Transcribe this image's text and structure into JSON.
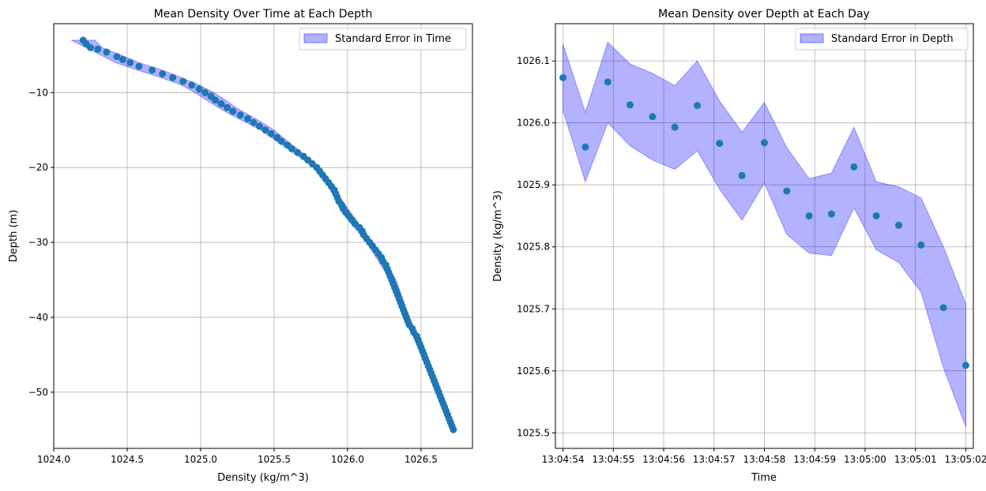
{
  "chart_data": [
    {
      "type": "scatter",
      "title": "Mean Density Over Time at Each Depth",
      "xlabel": "Density (kg/m^3)",
      "ylabel": "Depth (m)",
      "xlim": [
        1024.0,
        1026.85
      ],
      "ylim": [
        -57.5,
        -0.8
      ],
      "xticks": [
        "1024.0",
        "1024.5",
        "1025.0",
        "1025.5",
        "1026.0",
        "1026.5"
      ],
      "xtick_values": [
        1024.0,
        1024.5,
        1025.0,
        1025.5,
        1026.0,
        1026.5
      ],
      "yticks": [
        "−10",
        "−20",
        "−30",
        "−40",
        "−50"
      ],
      "ytick_values": [
        -10,
        -20,
        -30,
        -40,
        -50
      ],
      "grid": true,
      "legend_position": "top-right",
      "legend": [
        "Standard Error in Time"
      ],
      "fill_legend": "Standard Error in Time",
      "point_color": "#1f77b4",
      "fill_color": "#0000ff",
      "points": [
        [
          1024.2,
          -3
        ],
        [
          1024.22,
          -3.5
        ],
        [
          1024.25,
          -4
        ],
        [
          1024.3,
          -4.2
        ],
        [
          1024.36,
          -4.6
        ],
        [
          1024.43,
          -5.2
        ],
        [
          1024.47,
          -5.6
        ],
        [
          1024.52,
          -6
        ],
        [
          1024.58,
          -6.5
        ],
        [
          1024.67,
          -7
        ],
        [
          1024.74,
          -7.5
        ],
        [
          1024.81,
          -8
        ],
        [
          1024.88,
          -8.5
        ],
        [
          1024.94,
          -9
        ],
        [
          1024.99,
          -9.5
        ],
        [
          1025.03,
          -10
        ],
        [
          1025.07,
          -10.5
        ],
        [
          1025.1,
          -11
        ],
        [
          1025.14,
          -11.5
        ],
        [
          1025.18,
          -12
        ],
        [
          1025.22,
          -12.5
        ],
        [
          1025.27,
          -13
        ],
        [
          1025.32,
          -13.5
        ],
        [
          1025.36,
          -14
        ],
        [
          1025.4,
          -14.5
        ],
        [
          1025.44,
          -15
        ],
        [
          1025.48,
          -15.5
        ],
        [
          1025.52,
          -16
        ],
        [
          1025.55,
          -16.5
        ],
        [
          1025.59,
          -17
        ],
        [
          1025.62,
          -17.5
        ],
        [
          1025.66,
          -18
        ],
        [
          1025.7,
          -18.5
        ],
        [
          1025.73,
          -19
        ],
        [
          1025.76,
          -19.5
        ],
        [
          1025.79,
          -20
        ],
        [
          1025.81,
          -20.5
        ],
        [
          1025.83,
          -21
        ],
        [
          1025.85,
          -21.5
        ],
        [
          1025.87,
          -22
        ],
        [
          1025.89,
          -22.5
        ],
        [
          1025.91,
          -23
        ],
        [
          1025.92,
          -23.5
        ],
        [
          1025.93,
          -24
        ],
        [
          1025.94,
          -24.5
        ],
        [
          1025.96,
          -25
        ],
        [
          1025.97,
          -25.5
        ],
        [
          1025.99,
          -26
        ],
        [
          1026.01,
          -26.5
        ],
        [
          1026.03,
          -27
        ],
        [
          1026.05,
          -27.5
        ],
        [
          1026.08,
          -28
        ],
        [
          1026.1,
          -28.5
        ],
        [
          1026.11,
          -29
        ],
        [
          1026.13,
          -29.5
        ],
        [
          1026.15,
          -30
        ],
        [
          1026.17,
          -30.5
        ],
        [
          1026.19,
          -31
        ],
        [
          1026.21,
          -31.5
        ],
        [
          1026.23,
          -32
        ],
        [
          1026.24,
          -32.5
        ],
        [
          1026.26,
          -33
        ],
        [
          1026.27,
          -33.5
        ],
        [
          1026.28,
          -34
        ],
        [
          1026.29,
          -34.5
        ],
        [
          1026.3,
          -35
        ],
        [
          1026.31,
          -35.5
        ],
        [
          1026.32,
          -36
        ],
        [
          1026.33,
          -36.5
        ],
        [
          1026.34,
          -37
        ],
        [
          1026.35,
          -37.5
        ],
        [
          1026.36,
          -38
        ],
        [
          1026.37,
          -38.5
        ],
        [
          1026.38,
          -39
        ],
        [
          1026.39,
          -39.5
        ],
        [
          1026.4,
          -40
        ],
        [
          1026.41,
          -40.5
        ],
        [
          1026.42,
          -41
        ],
        [
          1026.44,
          -41.5
        ],
        [
          1026.45,
          -42
        ],
        [
          1026.47,
          -42.5
        ],
        [
          1026.48,
          -43
        ],
        [
          1026.49,
          -43.5
        ],
        [
          1026.5,
          -44
        ],
        [
          1026.51,
          -44.5
        ],
        [
          1026.52,
          -45
        ],
        [
          1026.53,
          -45.5
        ],
        [
          1026.54,
          -46
        ],
        [
          1026.55,
          -46.5
        ],
        [
          1026.56,
          -47
        ],
        [
          1026.57,
          -47.5
        ],
        [
          1026.58,
          -48
        ],
        [
          1026.59,
          -48.5
        ],
        [
          1026.6,
          -49
        ],
        [
          1026.61,
          -49.5
        ],
        [
          1026.62,
          -50
        ],
        [
          1026.63,
          -50.5
        ],
        [
          1026.64,
          -51
        ],
        [
          1026.65,
          -51.5
        ],
        [
          1026.66,
          -52
        ],
        [
          1026.67,
          -52.5
        ],
        [
          1026.68,
          -53
        ],
        [
          1026.69,
          -53.5
        ],
        [
          1026.7,
          -54
        ],
        [
          1026.71,
          -54.5
        ],
        [
          1026.72,
          -55
        ]
      ],
      "band": {
        "depth": [
          -3,
          -4,
          -5,
          -6,
          -7,
          -8,
          -9,
          -10,
          -11,
          -12,
          -13,
          -14,
          -15,
          -16,
          -18,
          -20,
          -22,
          -24,
          -26,
          -30,
          -35,
          -40,
          -45,
          -50,
          -55
        ],
        "lower": [
          1024.12,
          1024.22,
          1024.32,
          1024.42,
          1024.57,
          1024.73,
          1024.87,
          1024.96,
          1025.04,
          1025.12,
          1025.21,
          1025.31,
          1025.41,
          1025.48,
          1025.63,
          1025.77,
          1025.85,
          1025.91,
          1025.96,
          1026.13,
          1026.29,
          1026.39,
          1026.5,
          1026.6,
          1026.7
        ],
        "upper": [
          1024.28,
          1024.33,
          1024.46,
          1024.58,
          1024.74,
          1024.87,
          1024.99,
          1025.09,
          1025.17,
          1025.24,
          1025.33,
          1025.42,
          1025.5,
          1025.56,
          1025.69,
          1025.81,
          1025.89,
          1025.95,
          1026.02,
          1026.17,
          1026.33,
          1026.42,
          1026.53,
          1026.63,
          1026.73
        ]
      }
    },
    {
      "type": "scatter",
      "title": "Mean Density over Depth at Each Day",
      "xlabel": "Time",
      "ylabel": "Density (kg/m^3)",
      "xlim": [
        -0.15,
        8.15
      ],
      "ylim": [
        1025.475,
        1026.16
      ],
      "xticks": [
        "13:04:54",
        "13:04:55",
        "13:04:56",
        "13:04:57",
        "13:04:58",
        "13:04:59",
        "13:05:00",
        "13:05:01",
        "13:05:02"
      ],
      "xtick_values": [
        0,
        1,
        2,
        3,
        4,
        5,
        6,
        7,
        8
      ],
      "yticks": [
        "1025.5",
        "1025.6",
        "1025.7",
        "1025.8",
        "1025.9",
        "1026.0",
        "1026.1"
      ],
      "ytick_values": [
        1025.5,
        1025.6,
        1025.7,
        1025.8,
        1025.9,
        1026.0,
        1026.1
      ],
      "grid": true,
      "legend_position": "top-right",
      "legend": [
        "Standard Error in Depth"
      ],
      "fill_legend": "Standard Error in Depth",
      "point_color": "#1f77b4",
      "fill_color": "#0000ff",
      "x": [
        0,
        0.444,
        0.889,
        1.333,
        1.778,
        2.222,
        2.667,
        3.111,
        3.556,
        4.0,
        4.444,
        4.889,
        5.333,
        5.778,
        6.222,
        6.667,
        7.111,
        7.556,
        8.0
      ],
      "values": [
        1026.073,
        1025.961,
        1026.066,
        1026.029,
        1026.01,
        1025.993,
        1026.028,
        1025.967,
        1025.915,
        1025.968,
        1025.89,
        1025.85,
        1025.853,
        1025.929,
        1025.85,
        1025.835,
        1025.803,
        1025.702,
        1025.609
      ],
      "lower": [
        1026.02,
        1025.905,
        1026.0,
        1025.963,
        1025.94,
        1025.925,
        1025.955,
        1025.893,
        1025.843,
        1025.903,
        1025.82,
        1025.79,
        1025.786,
        1025.863,
        1025.795,
        1025.775,
        1025.727,
        1025.605,
        1025.51
      ],
      "upper": [
        1026.127,
        1026.017,
        1026.13,
        1026.095,
        1026.08,
        1026.06,
        1026.1,
        1026.035,
        1025.985,
        1026.033,
        1025.96,
        1025.91,
        1025.919,
        1025.993,
        1025.905,
        1025.897,
        1025.879,
        1025.8,
        1025.708
      ]
    }
  ]
}
